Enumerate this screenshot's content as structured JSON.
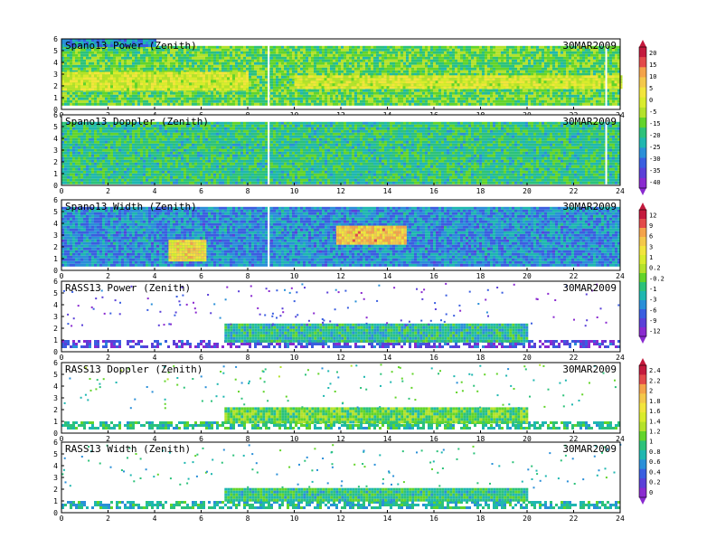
{
  "date": "30MAR2009",
  "x_ticks": [
    "0",
    "2",
    "4",
    "6",
    "8",
    "10",
    "12",
    "14",
    "16",
    "18",
    "20",
    "22",
    "24"
  ],
  "y_ticks": [
    "0",
    "1",
    "2",
    "3",
    "4",
    "5",
    "6"
  ],
  "colorbars": [
    {
      "id": "power-spectral",
      "ticks": [
        "20",
        "15",
        "10",
        "5",
        "0",
        "-5",
        "-15",
        "-20",
        "-25",
        "-30",
        "-35",
        "-40"
      ],
      "colors": [
        "#c41a3d",
        "#e34a4a",
        "#f4a34a",
        "#f4c84a",
        "#f2e53c",
        "#d9ec2c",
        "#b4e22a",
        "#62d42a",
        "#2cc27a",
        "#1fb7b0",
        "#2a8fd8",
        "#3a5ee0",
        "#5a40d8",
        "#8a2ad0"
      ]
    },
    {
      "id": "width-spectral",
      "ticks": [
        "12",
        "9",
        "6",
        "3",
        "1",
        "0.2",
        "-0.2",
        "-1",
        "-3",
        "-6",
        "-9",
        "-12"
      ],
      "colors": [
        "#c41a3d",
        "#e34a4a",
        "#f4a34a",
        "#f4c84a",
        "#f2e53c",
        "#d9ec2c",
        "#b4e22a",
        "#62d42a",
        "#2cc27a",
        "#1fb7b0",
        "#2a8fd8",
        "#3a5ee0",
        "#5a40d8",
        "#8a2ad0"
      ]
    },
    {
      "id": "rass-doppler",
      "ticks": [
        "2.4",
        "2.2",
        "2",
        "1.8",
        "1.6",
        "1.4",
        "1.2",
        "1",
        "0.8",
        "0.6",
        "0.4",
        "0.2",
        "0"
      ],
      "colors": [
        "#c41a3d",
        "#e34a4a",
        "#f4a34a",
        "#f4c84a",
        "#f2e53c",
        "#d9ec2c",
        "#b4e22a",
        "#62d42a",
        "#2cc27a",
        "#1fb7b0",
        "#2a8fd8",
        "#3a5ee0",
        "#5a40d8",
        "#8a2ad0"
      ]
    }
  ],
  "chart_data": [
    {
      "type": "heatmap",
      "title": "Spano13 Power (Zenith)",
      "xlim": [
        0,
        24
      ],
      "ylim": [
        0,
        6
      ],
      "colorbar": "power-spectral",
      "value_range": [
        -40,
        20
      ],
      "layers": [
        {
          "y": [
            0.5,
            5.4
          ],
          "x": [
            0,
            24
          ],
          "level": 0.55
        },
        {
          "y": [
            1.6,
            3.2
          ],
          "x": [
            0,
            8
          ],
          "level": 0.4
        },
        {
          "y": [
            1.9,
            2.9
          ],
          "x": [
            10,
            24
          ],
          "level": 0.4
        },
        {
          "y": [
            5.4,
            6.0
          ],
          "x": [
            0,
            4
          ],
          "level": 0.75
        }
      ],
      "gaps_x": [
        8.9,
        23.4
      ]
    },
    {
      "type": "heatmap",
      "title": "Spano13 Doppler (Zenith)",
      "xlim": [
        0,
        24
      ],
      "ylim": [
        0,
        6
      ],
      "colorbar": "power-spectral",
      "value_range": [
        -40,
        20
      ],
      "layers": [
        {
          "y": [
            0.3,
            5.4
          ],
          "x": [
            0,
            24
          ],
          "level": 0.62
        }
      ],
      "gaps_x": [
        8.9,
        23.4
      ]
    },
    {
      "type": "heatmap",
      "title": "Spano13 Width (Zenith)",
      "xlim": [
        0,
        24
      ],
      "ylim": [
        0,
        6
      ],
      "colorbar": "width-spectral",
      "value_range": [
        -12,
        12
      ],
      "layers": [
        {
          "y": [
            0.4,
            5.4
          ],
          "x": [
            0,
            24
          ],
          "level": 0.75
        },
        {
          "y": [
            2.2,
            3.8
          ],
          "x": [
            11.8,
            14.8
          ],
          "level": 0.25
        },
        {
          "y": [
            0.8,
            2.6
          ],
          "x": [
            4.6,
            6.2
          ],
          "level": 0.3
        }
      ],
      "gaps_x": [
        8.9
      ]
    },
    {
      "type": "heatmap",
      "title": "RASS13 Power (Zenith)",
      "xlim": [
        0,
        24
      ],
      "ylim": [
        0,
        6
      ],
      "colorbar": "width-spectral",
      "value_range": [
        -12,
        12
      ],
      "layers": [
        {
          "y": [
            0.4,
            1.0
          ],
          "x": [
            0,
            24
          ],
          "level": 0.88
        },
        {
          "y": [
            1.0,
            2.4
          ],
          "x": [
            7,
            20
          ],
          "level": 0.65
        }
      ],
      "gaps_x": []
    },
    {
      "type": "heatmap",
      "title": "RASS13 Doppler (Zenith)",
      "xlim": [
        0,
        24
      ],
      "ylim": [
        0,
        6
      ],
      "colorbar": "rass-doppler",
      "value_range": [
        0,
        2.4
      ],
      "layers": [
        {
          "y": [
            0.4,
            1.0
          ],
          "x": [
            0,
            24
          ],
          "level": 0.62
        },
        {
          "y": [
            1.0,
            2.2
          ],
          "x": [
            7,
            20
          ],
          "level": 0.55
        }
      ],
      "gaps_x": []
    },
    {
      "type": "heatmap",
      "title": "RASS13 Width (Zenith)",
      "xlim": [
        0,
        24
      ],
      "ylim": [
        0,
        6
      ],
      "colorbar": "rass-doppler",
      "value_range": [
        0,
        2.4
      ],
      "layers": [
        {
          "y": [
            0.4,
            1.0
          ],
          "x": [
            0,
            24
          ],
          "level": 0.66
        },
        {
          "y": [
            1.0,
            2.1
          ],
          "x": [
            7,
            20
          ],
          "level": 0.62
        }
      ],
      "gaps_x": []
    }
  ]
}
